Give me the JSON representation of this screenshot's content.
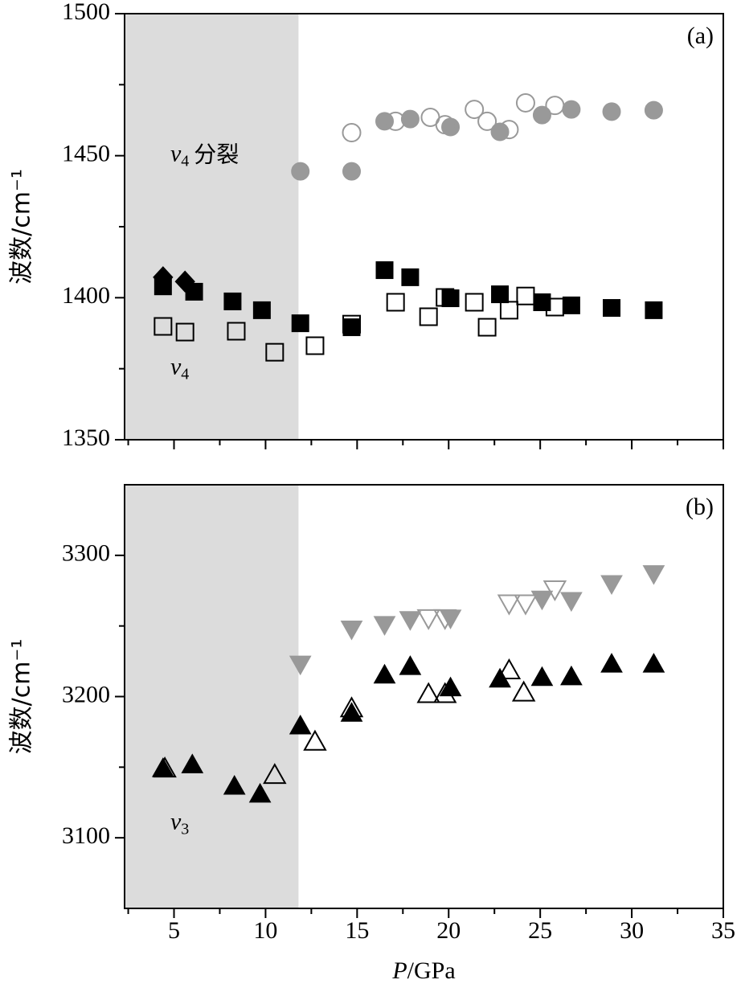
{
  "chart_data": [
    {
      "type": "scatter",
      "panel_label": "(a)",
      "ylabel": "波数/cm⁻¹",
      "xlim": [
        2.3,
        35
      ],
      "xticks": [
        5,
        10,
        15,
        20,
        25,
        30,
        35
      ],
      "xminorticks": [
        2.5,
        7.5,
        12.5,
        17.5,
        22.5,
        27.5,
        32.5
      ],
      "show_xtick_labels": false,
      "ylim": [
        1350,
        1500
      ],
      "yticks": [
        1350,
        1400,
        1450,
        1500
      ],
      "yminorticks": [
        1375,
        1425,
        1475
      ],
      "shade_until": 11.8,
      "shade_color": "#dcdcdc",
      "annotations": [
        {
          "symbol": "v",
          "subscript": "4",
          "text": "分裂",
          "x": 4.8,
          "y": 1450
        },
        {
          "symbol": "v",
          "subscript": "4",
          "x": 4.8,
          "y": 1375
        }
      ],
      "series": [
        {
          "marker": "circle",
          "color": "#999999",
          "filled": true,
          "x": [
            11.9,
            14.7,
            16.5,
            17.9,
            20.1,
            22.8,
            25.1,
            26.7,
            28.9,
            31.2
          ],
          "values": [
            1444.5,
            1444.5,
            1462.1,
            1462.9,
            1460.1,
            1458.4,
            1464.3,
            1466.3,
            1465.5,
            1466.0
          ]
        },
        {
          "marker": "circle",
          "color": "#999999",
          "filled": false,
          "x": [
            14.7,
            17.1,
            19.0,
            19.8,
            21.4,
            22.1,
            23.3,
            24.2,
            25.8
          ],
          "values": [
            1458.1,
            1462.1,
            1463.5,
            1460.9,
            1466.3,
            1462.1,
            1459.2,
            1468.6,
            1467.7
          ]
        },
        {
          "marker": "diamond",
          "color": "#000000",
          "filled": true,
          "x": [
            4.4,
            5.6
          ],
          "values": [
            1407.2,
            1405.7
          ]
        },
        {
          "marker": "square",
          "color": "#000000",
          "filled": true,
          "x": [
            4.4,
            6.1,
            8.2,
            9.8,
            11.9,
            14.7,
            16.5,
            17.9,
            20.1,
            22.8,
            25.1,
            26.7,
            28.9,
            31.2
          ],
          "values": [
            1404.0,
            1402.1,
            1398.7,
            1395.6,
            1391.0,
            1389.6,
            1409.7,
            1407.2,
            1399.8,
            1401.2,
            1398.4,
            1397.3,
            1396.4,
            1395.6
          ]
        },
        {
          "marker": "square",
          "color": "#000000",
          "filled": false,
          "x": [
            4.4,
            5.6,
            8.4,
            10.5,
            12.7,
            14.7,
            17.1,
            18.9,
            19.8,
            21.4,
            22.1,
            23.3,
            24.2,
            25.8
          ],
          "values": [
            1389.9,
            1387.9,
            1388.2,
            1380.8,
            1383.1,
            1390.7,
            1398.4,
            1393.3,
            1400.1,
            1398.4,
            1389.6,
            1395.6,
            1400.6,
            1396.7
          ]
        }
      ]
    },
    {
      "type": "scatter",
      "panel_label": "(b)",
      "ylabel": "波数/cm⁻¹",
      "xlabel": {
        "italic": "P",
        "text": "/GPa"
      },
      "xlim": [
        2.3,
        35
      ],
      "xticks": [
        5,
        10,
        15,
        20,
        25,
        30,
        35
      ],
      "xminorticks": [
        2.5,
        7.5,
        12.5,
        17.5,
        22.5,
        27.5,
        32.5
      ],
      "show_xtick_labels": true,
      "ylim": [
        3050,
        3350
      ],
      "yticks": [
        3100,
        3200,
        3300
      ],
      "yminorticks": [
        3150,
        3250
      ],
      "shade_until": 11.8,
      "shade_color": "#dcdcdc",
      "annotations": [
        {
          "symbol": "v",
          "subscript": "3",
          "x": 4.8,
          "y": 3110
        }
      ],
      "series": [
        {
          "marker": "triangle-up",
          "color": "#000000",
          "filled": true,
          "x": [
            4.4,
            6.0,
            8.3,
            9.7,
            11.9,
            14.7,
            16.5,
            17.9,
            20.1,
            22.8,
            25.1,
            26.7,
            28.9,
            31.2
          ],
          "values": [
            3149,
            3151.7,
            3136.5,
            3130.9,
            3179.2,
            3188.2,
            3215.2,
            3221.3,
            3206.2,
            3212.4,
            3213.5,
            3214.0,
            3223.0,
            3223.0
          ]
        },
        {
          "marker": "triangle-up",
          "color": "#000000",
          "filled": false,
          "x": [
            4.5,
            10.5,
            12.7,
            14.7,
            18.9,
            19.8,
            23.3,
            24.1
          ],
          "values": [
            3149,
            3144.4,
            3168,
            3191.6,
            3201.7,
            3201.7,
            3218.5,
            3202.8
          ]
        },
        {
          "marker": "triangle-down",
          "color": "#999999",
          "filled": true,
          "x": [
            11.9,
            14.7,
            16.5,
            17.9,
            20.1,
            25.1,
            26.7,
            28.9,
            31.2
          ],
          "values": [
            3223,
            3247.8,
            3251,
            3254.5,
            3255.6,
            3269,
            3268,
            3280,
            3287
          ]
        },
        {
          "marker": "triangle-down",
          "color": "#999999",
          "filled": false,
          "x": [
            18.9,
            19.8,
            23.3,
            24.2,
            25.8
          ],
          "values": [
            3255.6,
            3255.6,
            3266,
            3266,
            3276
          ]
        }
      ]
    }
  ]
}
